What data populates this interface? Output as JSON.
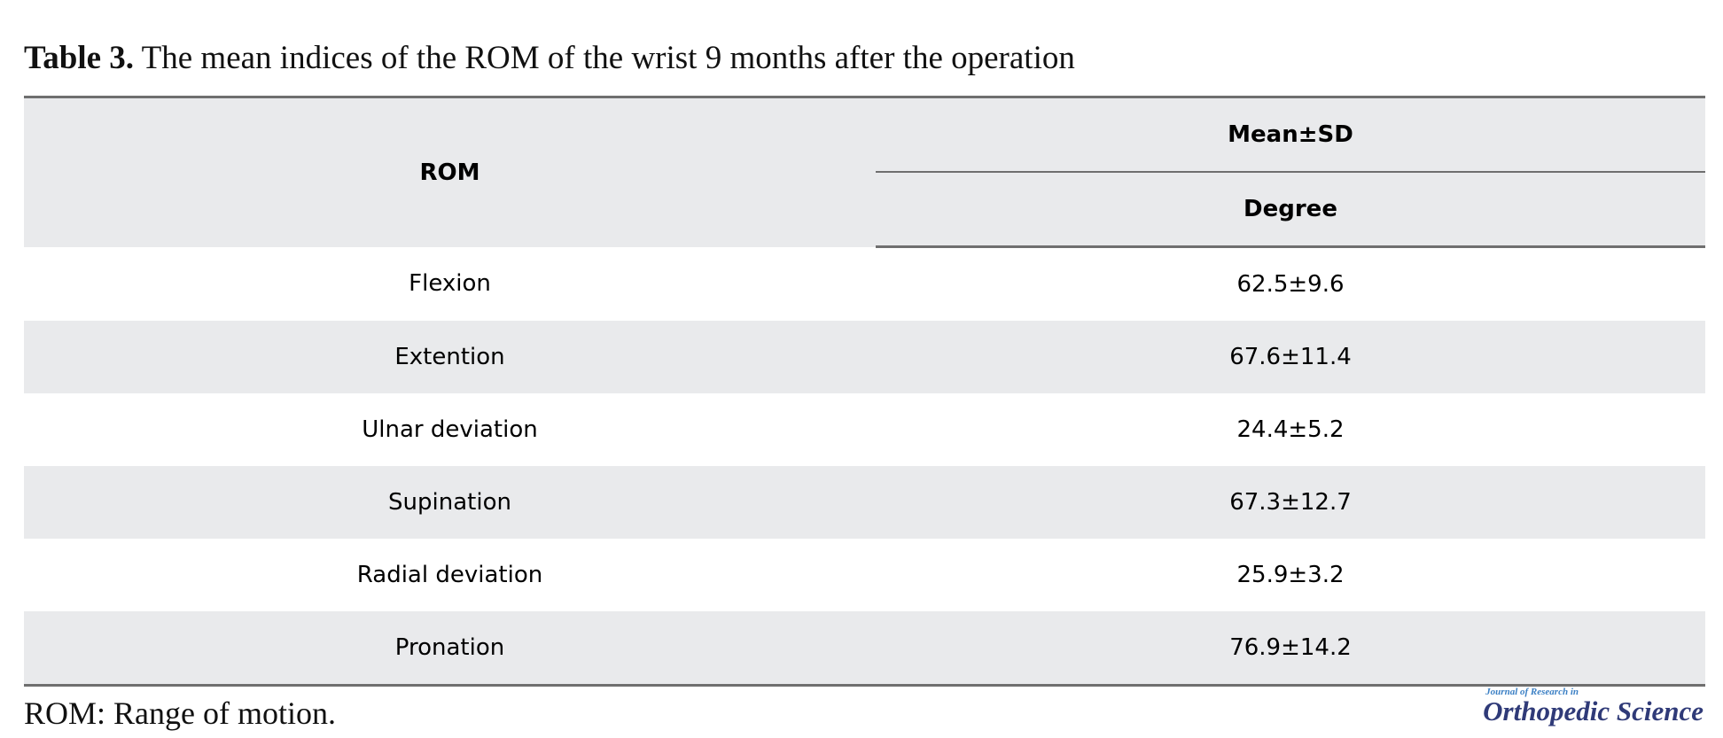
{
  "caption": {
    "label": "Table 3.",
    "text": "The mean indices of the ROM of the wrist 9 months after the operation"
  },
  "table": {
    "headers": {
      "rom": "ROM",
      "mean": "Mean±SD",
      "unit": "Degree"
    },
    "rows": [
      {
        "rom": "Flexion",
        "value": "62.5±9.6"
      },
      {
        "rom": "Extention",
        "value": "67.6±11.4"
      },
      {
        "rom": "Ulnar deviation",
        "value": "24.4±5.2"
      },
      {
        "rom": "Supination",
        "value": "67.3±12.7"
      },
      {
        "rom": "Radial deviation",
        "value": "25.9±3.2"
      },
      {
        "rom": "Pronation",
        "value": "76.9±14.2"
      }
    ]
  },
  "footnote": "ROM: Range of motion.",
  "logo": {
    "small": "Journal of Research in",
    "big": "Orthopedic Science"
  },
  "colors": {
    "header_bg": "#e9eaec",
    "rule": "#6f6f6f",
    "logo_small": "#3a7fc4",
    "logo_big": "#2f3a78"
  }
}
